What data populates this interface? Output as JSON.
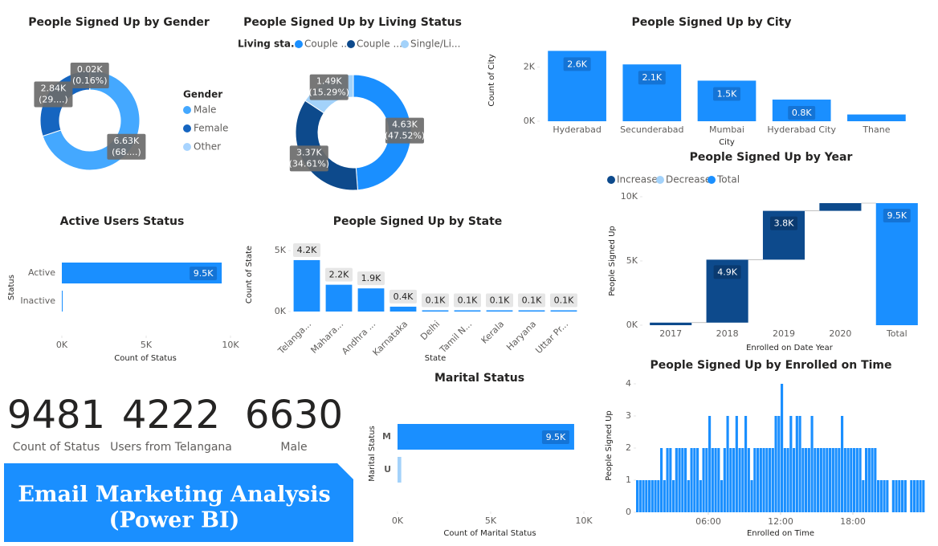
{
  "chart_data": [
    {
      "type": "donut",
      "title": "People Signed Up by Gender",
      "legend_title": "Gender",
      "categories": [
        "Male",
        "Female",
        "Other"
      ],
      "values": [
        6630,
        2840,
        15
      ],
      "value_labels": [
        [
          "6.63K",
          "(68....)"
        ],
        [
          "2.84K",
          "(29....)"
        ],
        [
          "0.02K",
          "(0.16%)"
        ]
      ],
      "colors": [
        "#44A8FF",
        "#1565C0",
        "#A8D4FF"
      ],
      "legend": "right"
    },
    {
      "type": "donut",
      "title": "People Signed Up by Living Status",
      "legend_title": "Living sta...",
      "categories": [
        "Couple ...",
        "Couple ...",
        "Single/Li..."
      ],
      "values": [
        4630,
        3370,
        1490
      ],
      "value_labels": [
        [
          "4.63K",
          "(47.52%)"
        ],
        [
          "3.37K",
          "(34.61%)"
        ],
        [
          "1.49K",
          "(15.29%)"
        ]
      ],
      "colors": [
        "#1A8FFF",
        "#0D4A8C",
        "#A3D2FA"
      ],
      "legend": "top"
    },
    {
      "type": "bar",
      "title": "People Signed Up by City",
      "xlabel": "City",
      "ylabel": "Count of City",
      "categories": [
        "Hyderabad",
        "Secunderabad",
        "Mumbai",
        "Hyderabad City",
        "Thane"
      ],
      "values": [
        2600,
        2100,
        1500,
        800,
        250
      ],
      "value_labels": [
        "2.6K",
        "2.1K",
        "1.5K",
        "0.8K",
        null
      ],
      "color": "#1A8FFF",
      "ylim": [
        0,
        2700
      ],
      "yticks": [
        {
          "value": 0,
          "label": "0K"
        },
        {
          "value": 2000,
          "label": "2K"
        }
      ],
      "label_position": "inside"
    },
    {
      "type": "waterfall",
      "title": "People Signed Up by Year",
      "xlabel": "Enrolled on Date Year",
      "ylabel": "People Signed Up",
      "legend": [
        {
          "name": "Increase",
          "color": "#0D4A8C"
        },
        {
          "name": "Decrease",
          "color": "#A3D2FA"
        },
        {
          "name": "Total",
          "color": "#1A8FFF"
        }
      ],
      "categories": [
        "2017",
        "2018",
        "2019",
        "2020",
        "Total"
      ],
      "values": [
        200,
        4900,
        3800,
        600,
        9500
      ],
      "value_labels": [
        null,
        "4.9K",
        "3.8K",
        null,
        "9.5K"
      ],
      "ylim": [
        0,
        10000
      ],
      "yticks": [
        {
          "value": 0,
          "label": "0K"
        },
        {
          "value": 5000,
          "label": "5K"
        },
        {
          "value": 10000,
          "label": "10K"
        }
      ]
    },
    {
      "type": "hbar",
      "title": "Active Users Status",
      "xlabel": "Count of Status",
      "ylabel": "Status",
      "categories": [
        "Active",
        "Inactive"
      ],
      "values": [
        9481,
        20
      ],
      "value_labels": [
        "9.5K",
        null
      ],
      "colors": [
        "#1A8FFF",
        "#1A8FFF"
      ],
      "xlim": [
        0,
        10000
      ],
      "xticks": [
        {
          "value": 0,
          "label": "0K"
        },
        {
          "value": 5000,
          "label": "5K"
        },
        {
          "value": 10000,
          "label": "10K"
        }
      ]
    },
    {
      "type": "bar",
      "title": "People Signed Up by State",
      "xlabel": "State",
      "ylabel": "Count of State",
      "categories": [
        "Telanga...",
        "Mahara...",
        "Andhra ...",
        "Karnataka",
        "Delhi",
        "Tamil N...",
        "Kerala",
        "Haryana",
        "Uttar Pr..."
      ],
      "values": [
        4222,
        2200,
        1900,
        400,
        100,
        100,
        100,
        100,
        100
      ],
      "value_labels": [
        "4.2K",
        "2.2K",
        "1.9K",
        "0.4K",
        "0.1K",
        "0.1K",
        "0.1K",
        "0.1K",
        "0.1K"
      ],
      "color": "#1A8FFF",
      "ylim": [
        0,
        5800
      ],
      "yticks": [
        {
          "value": 0,
          "label": "0K"
        },
        {
          "value": 5000,
          "label": "5K"
        }
      ],
      "label_position": "outside"
    },
    {
      "type": "hbar",
      "title": "Marital Status",
      "xlabel": "Count of Marital Status",
      "ylabel": "Marital Status",
      "categories": [
        "M",
        "U"
      ],
      "values": [
        9480,
        200
      ],
      "value_labels": [
        "9.5K",
        null
      ],
      "colors": [
        "#1A8FFF",
        "#A3D2FA"
      ],
      "xlim": [
        0,
        10000
      ],
      "xticks": [
        {
          "value": 0,
          "label": "0K"
        },
        {
          "value": 5000,
          "label": "5K"
        },
        {
          "value": 10000,
          "label": "10K"
        }
      ]
    },
    {
      "type": "column",
      "title": "People Signed Up by Enrolled on Time",
      "xlabel": "Enrolled on Time",
      "ylabel": "People Signed Up",
      "x": [
        0,
        0.25,
        0.5,
        0.75,
        1,
        1.25,
        1.5,
        1.75,
        2,
        2.25,
        2.5,
        2.75,
        3,
        3.25,
        3.5,
        3.75,
        4,
        4.25,
        4.5,
        4.75,
        5,
        5.25,
        5.5,
        5.75,
        6,
        6.25,
        6.5,
        6.75,
        7,
        7.25,
        7.5,
        7.75,
        8,
        8.25,
        8.5,
        8.75,
        9,
        9.25,
        9.5,
        9.75,
        10,
        10.25,
        10.5,
        10.75,
        11,
        11.25,
        11.5,
        11.75,
        12,
        12.25,
        12.5,
        12.75,
        13,
        13.25,
        13.5,
        13.75,
        14,
        14.25,
        14.5,
        14.75,
        15,
        15.25,
        15.5,
        15.75,
        16,
        16.25,
        16.5,
        16.75,
        17,
        17.25,
        17.5,
        17.75,
        18,
        18.25,
        18.5,
        18.75,
        19,
        19.25,
        19.5,
        19.75,
        20,
        20.25,
        20.5,
        20.75,
        21,
        21.25,
        21.5,
        21.75,
        22,
        22.25,
        22.5,
        22.75,
        23,
        23.25,
        23.5,
        23.75
      ],
      "values": [
        1,
        1,
        1,
        1,
        1,
        1,
        1,
        1,
        2,
        1,
        2,
        2,
        1,
        2,
        2,
        2,
        2,
        1,
        2,
        2,
        2,
        1,
        2,
        2,
        3,
        2,
        2,
        2,
        1,
        2,
        3,
        2,
        2,
        3,
        2,
        2,
        3,
        2,
        1,
        2,
        2,
        2,
        2,
        2,
        2,
        2,
        3,
        3,
        4,
        2,
        2,
        3,
        2,
        3,
        3,
        2,
        2,
        2,
        3,
        2,
        2,
        2,
        2,
        2,
        2,
        2,
        2,
        2,
        3,
        2,
        2,
        2,
        2,
        2,
        2,
        1,
        2,
        2,
        2,
        2,
        1,
        1,
        1,
        1,
        0,
        1,
        1,
        1,
        1,
        1,
        0,
        1,
        1,
        1,
        1,
        1
      ],
      "color": "#1A8FFF",
      "xlim": [
        0,
        24
      ],
      "ylim": [
        0,
        4.2
      ],
      "xticks": [
        {
          "value": 6,
          "label": "06:00"
        },
        {
          "value": 12,
          "label": "12:00"
        },
        {
          "value": 18,
          "label": "18:00"
        }
      ],
      "yticks": [
        0,
        1,
        2,
        3,
        4
      ]
    }
  ],
  "cards": [
    {
      "value": 9481,
      "label": "Count of Status"
    },
    {
      "value": 4222,
      "label": "Users from Telangana"
    },
    {
      "value": 6630,
      "label": "Male"
    }
  ],
  "banner": {
    "lines": [
      "Email Marketing Analysis",
      "(Power BI)"
    ]
  }
}
